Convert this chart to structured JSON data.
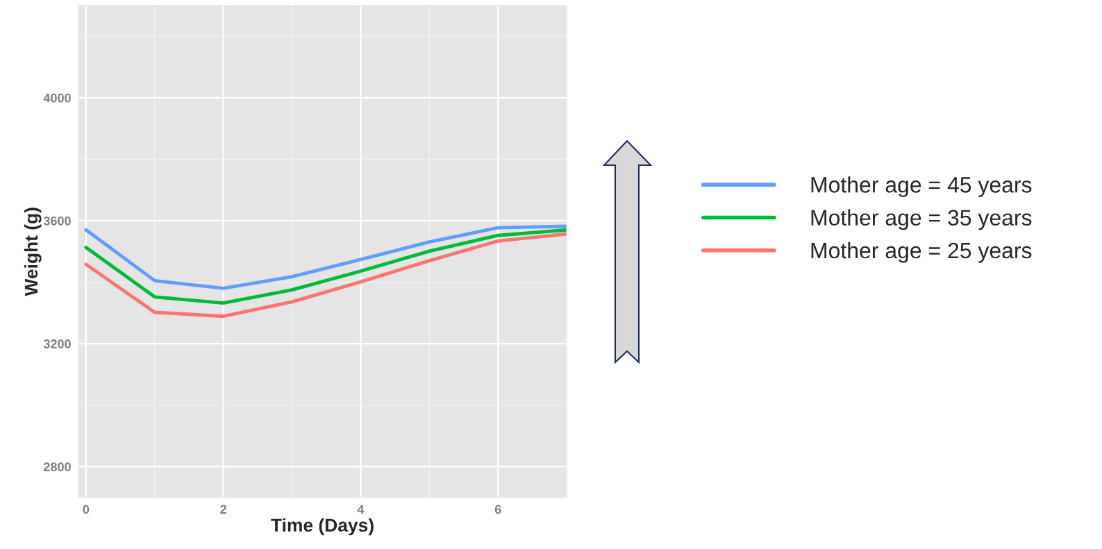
{
  "chart_data": {
    "type": "line",
    "xlabel": "Time (Days)",
    "ylabel": "Weight (g)",
    "x": [
      0,
      1,
      2,
      3,
      4,
      5,
      6,
      7
    ],
    "series": [
      {
        "name": "Mother age = 45 years",
        "color": "#619cff",
        "values": [
          3570,
          3405,
          3380,
          3418,
          3474,
          3531,
          3577,
          3582
        ]
      },
      {
        "name": "Mother age = 35 years",
        "color": "#00ba38",
        "values": [
          3513,
          3352,
          3332,
          3375,
          3436,
          3501,
          3552,
          3570
        ]
      },
      {
        "name": "Mother age = 25 years",
        "color": "#f8766d",
        "values": [
          3458,
          3302,
          3289,
          3336,
          3401,
          3470,
          3534,
          3557
        ]
      }
    ],
    "xlim": [
      -0.11,
      7.0
    ],
    "ylim": [
      2700,
      4300
    ],
    "xticks": [
      0,
      2,
      4,
      6
    ],
    "yticks": [
      2800,
      3200,
      3600,
      4000
    ],
    "grid": true,
    "legend": "right",
    "marker": "none",
    "line_style": "solid"
  }
}
